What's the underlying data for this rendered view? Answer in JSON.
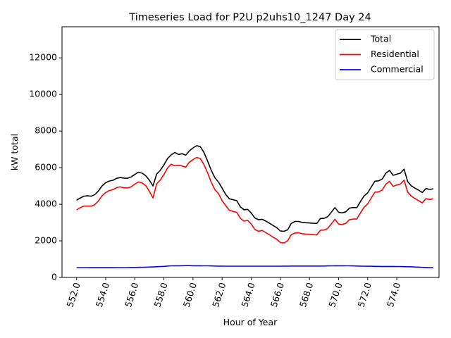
{
  "chart_data": {
    "type": "line",
    "title": "Timeseries Load for P2U p2uhs10_1247  Day 24",
    "xlabel": "Hour of Year",
    "ylabel": "kW total",
    "xlim": [
      551.0,
      576.9
    ],
    "ylim": [
      0,
      13700
    ],
    "x_start": 552.0,
    "x_step": 0.25,
    "x_ticks": [
      552.0,
      554.0,
      556.0,
      558.0,
      560.0,
      562.0,
      564.0,
      566.0,
      568.0,
      570.0,
      572.0,
      574.0
    ],
    "x_tick_labels": [
      "552.0",
      "554.0",
      "556.0",
      "558.0",
      "560.0",
      "562.0",
      "564.0",
      "566.0",
      "568.0",
      "570.0",
      "572.0",
      "574.0"
    ],
    "y_ticks": [
      0,
      2000,
      4000,
      6000,
      8000,
      10000,
      12000
    ],
    "y_tick_labels": [
      "0",
      "2000",
      "4000",
      "6000",
      "8000",
      "10000",
      "12000"
    ],
    "legend_position": "top-right",
    "series": [
      {
        "name": "Total",
        "color": "#000000",
        "values": [
          4220,
          4340,
          4440,
          4460,
          4440,
          4520,
          4720,
          5000,
          5180,
          5270,
          5310,
          5420,
          5460,
          5430,
          5420,
          5490,
          5630,
          5750,
          5700,
          5560,
          5320,
          5000,
          5650,
          5850,
          6150,
          6500,
          6700,
          6830,
          6720,
          6760,
          6680,
          6920,
          7080,
          7200,
          7150,
          6830,
          6360,
          5860,
          5450,
          5210,
          4880,
          4530,
          4300,
          4250,
          4200,
          3860,
          3700,
          3720,
          3520,
          3250,
          3150,
          3180,
          3080,
          2960,
          2840,
          2720,
          2540,
          2520,
          2600,
          2950,
          3060,
          3060,
          3010,
          2990,
          2980,
          2960,
          2950,
          3220,
          3230,
          3320,
          3560,
          3820,
          3560,
          3530,
          3590,
          3790,
          3820,
          3810,
          4150,
          4450,
          4620,
          4950,
          5260,
          5280,
          5380,
          5700,
          5850,
          5580,
          5640,
          5700,
          5920,
          5230,
          5000,
          4880,
          4770,
          4640,
          4860,
          4810,
          4840
        ]
      },
      {
        "name": "Residential",
        "color": "#ff0000",
        "values": [
          3690,
          3810,
          3900,
          3900,
          3900,
          3980,
          4180,
          4460,
          4640,
          4750,
          4800,
          4910,
          4950,
          4900,
          4890,
          4950,
          5100,
          5220,
          5170,
          5020,
          4710,
          4340,
          5120,
          5320,
          5630,
          5980,
          6190,
          6100,
          6130,
          6090,
          6030,
          6300,
          6440,
          6560,
          6500,
          6170,
          5720,
          5210,
          4800,
          4580,
          4200,
          3920,
          3670,
          3610,
          3560,
          3240,
          3080,
          3120,
          2920,
          2620,
          2520,
          2570,
          2450,
          2330,
          2200,
          2090,
          1910,
          1880,
          2000,
          2340,
          2430,
          2440,
          2390,
          2370,
          2360,
          2340,
          2320,
          2580,
          2590,
          2680,
          2920,
          3180,
          2920,
          2890,
          2960,
          3160,
          3190,
          3190,
          3530,
          3830,
          4020,
          4350,
          4660,
          4680,
          4780,
          5100,
          5250,
          4980,
          5050,
          5110,
          5320,
          4660,
          4440,
          4310,
          4200,
          4070,
          4310,
          4260,
          4300
        ]
      },
      {
        "name": "Commercial",
        "color": "#0000ff",
        "values": [
          540,
          540,
          540,
          540,
          535,
          535,
          535,
          535,
          535,
          535,
          535,
          540,
          540,
          540,
          540,
          545,
          545,
          550,
          555,
          560,
          565,
          575,
          585,
          595,
          605,
          625,
          635,
          640,
          640,
          640,
          645,
          645,
          640,
          640,
          640,
          635,
          635,
          630,
          625,
          620,
          620,
          615,
          615,
          615,
          615,
          615,
          615,
          615,
          615,
          615,
          615,
          615,
          615,
          615,
          615,
          615,
          615,
          620,
          620,
          625,
          625,
          625,
          625,
          625,
          625,
          625,
          625,
          625,
          625,
          630,
          635,
          640,
          640,
          640,
          635,
          635,
          630,
          625,
          620,
          615,
          610,
          610,
          605,
          605,
          600,
          600,
          600,
          600,
          595,
          595,
          590,
          585,
          580,
          570,
          560,
          550,
          545,
          540,
          535
        ]
      }
    ]
  }
}
